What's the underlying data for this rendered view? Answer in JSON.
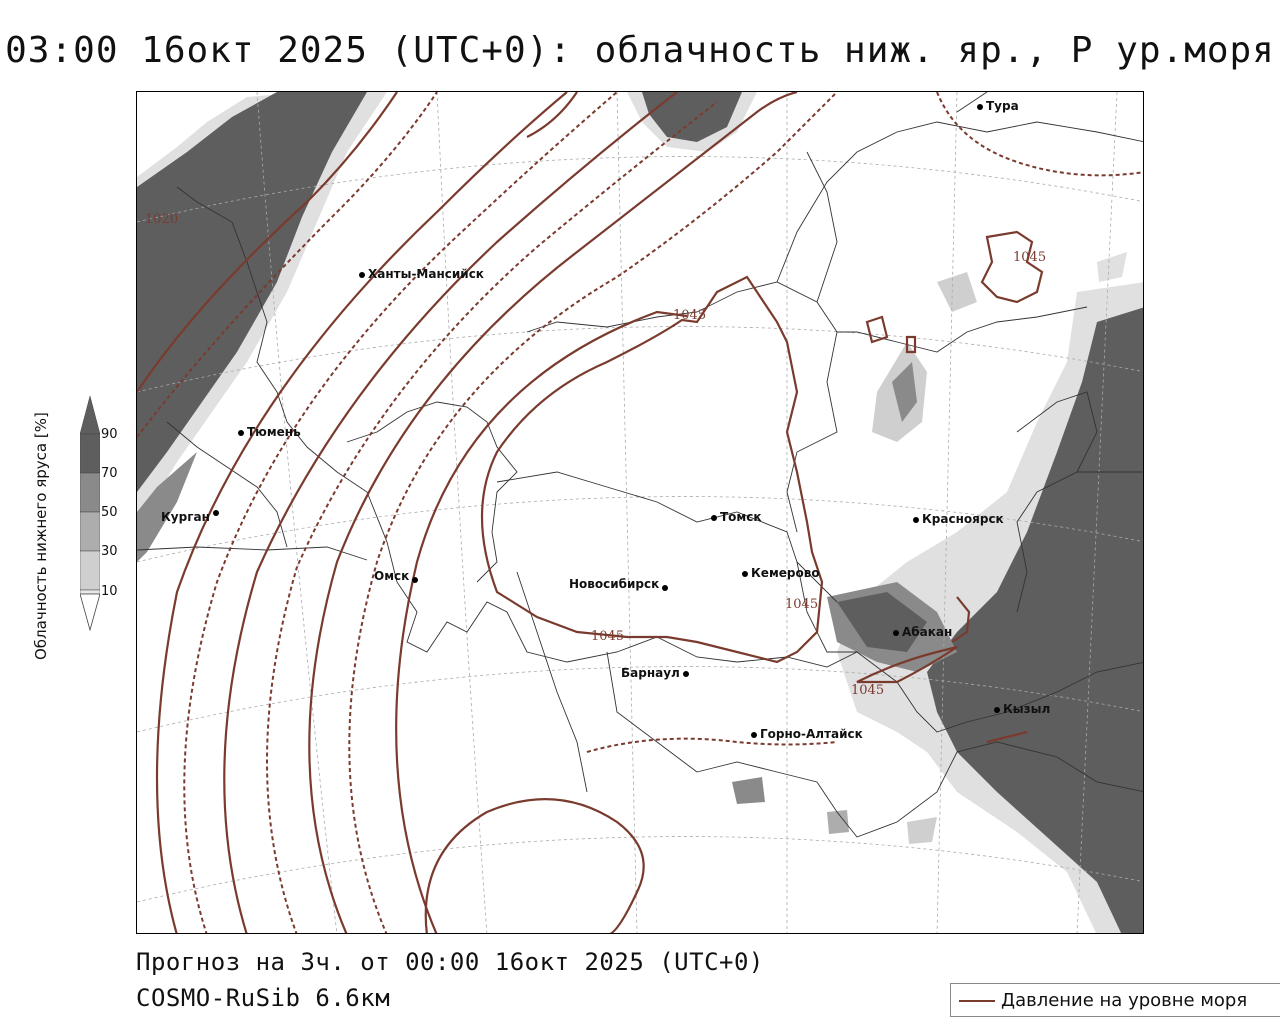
{
  "title": "03:00 16окт 2025 (UTC+0): облачность ниж. яр., P ур.моря",
  "footer": {
    "forecast": "Прогноз на 3ч. от 00:00 16окт 2025 (UTC+0)",
    "model": "COSMO-RuSib 6.6км"
  },
  "legend": {
    "pressure_label": "Давление на уровне моря",
    "line_color": "#7a3b2e"
  },
  "colorbar": {
    "title": "Облачность нижнего яруса [%]",
    "ticks": [
      "90",
      "70",
      "50",
      "30",
      "10"
    ],
    "colors": [
      "#5e5e5e",
      "#8a8a8a",
      "#adadad",
      "#cfcfcf",
      "#e8e8e8"
    ]
  },
  "cities": [
    {
      "name": "Тура"
    },
    {
      "name": "Ханты-Мансийск"
    },
    {
      "name": "Тюмень"
    },
    {
      "name": "Курган"
    },
    {
      "name": "Омск"
    },
    {
      "name": "Новосибирск"
    },
    {
      "name": "Томск"
    },
    {
      "name": "Кемерово"
    },
    {
      "name": "Барнаул"
    },
    {
      "name": "Горно-Алтайск"
    },
    {
      "name": "Красноярск"
    },
    {
      "name": "Абакан"
    },
    {
      "name": "Кызыл"
    }
  ],
  "contour_labels": [
    "1020",
    "1045",
    "1045",
    "1045",
    "1045",
    "1045"
  ]
}
